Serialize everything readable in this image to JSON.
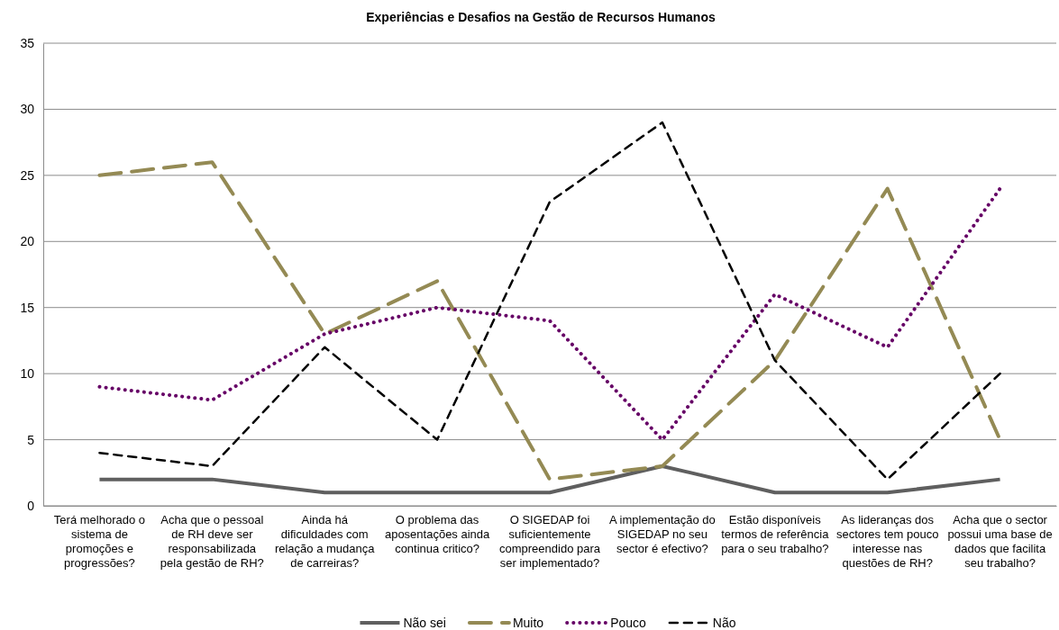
{
  "chart_data": {
    "type": "line",
    "title": "Experiências e Desafios na Gestão de Recursos Humanos",
    "categories": [
      "Terá melhorado o sistema de promoções e progressões?",
      "Acha que o pessoal de RH deve ser responsabilizada pela gestão de RH?",
      "Ainda há dificuldades com relação a mudança de carreiras?",
      "O problema das aposentações ainda continua critico?",
      "O SIGEDAP foi suficientemente compreendido para ser implementado?",
      "A implementação do SIGEDAP no seu sector é efectivo?",
      "Estão disponíveis termos de referência para o seu trabalho?",
      "As lideranças dos sectores tem pouco interesse nas questões de RH?",
      "Acha que o sector possui uma base de dados que facilita seu trabalho?"
    ],
    "series": [
      {
        "name": "Não sei",
        "color": "#5f5f5f",
        "line_style": "solid",
        "values": [
          2,
          2,
          1,
          1,
          1,
          3,
          1,
          1,
          2
        ]
      },
      {
        "name": "Muito",
        "color": "#948a54",
        "line_style": "longdash",
        "values": [
          25,
          26,
          13,
          17,
          2,
          3,
          11,
          24,
          5
        ]
      },
      {
        "name": "Pouco",
        "color": "#660066",
        "line_style": "dotted",
        "values": [
          9,
          8,
          13,
          15,
          14,
          5,
          16,
          12,
          24
        ]
      },
      {
        "name": "Não",
        "color": "#000000",
        "line_style": "dashed",
        "values": [
          4,
          3,
          12,
          5,
          23,
          29,
          11,
          2,
          10
        ]
      }
    ],
    "ylim": [
      0,
      35
    ],
    "yticks": [
      0,
      5,
      10,
      15,
      20,
      25,
      30,
      35
    ],
    "grid": "y",
    "legend": "bottom",
    "marker": "none"
  }
}
